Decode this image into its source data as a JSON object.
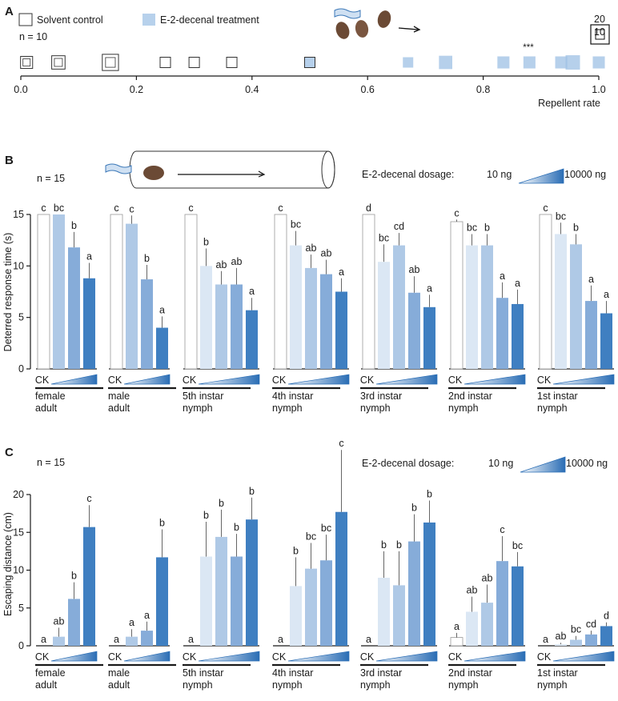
{
  "colors": {
    "ck_stroke": "#9a9a9a",
    "dose_fills": [
      "#dbe7f4",
      "#afc9e6",
      "#86acd9",
      "#3f7fc1"
    ],
    "solvent_stroke": "#333333",
    "treatment_fill": "#9dc0e4",
    "axis": "#1a1a1a"
  },
  "chart_data": [
    {
      "panel": "A",
      "type": "scatter",
      "xlabel": "Repellent rate",
      "xlim": [
        0.0,
        1.0
      ],
      "xticks": [
        "0.0",
        "0.2",
        "0.4",
        "0.6",
        "0.8",
        "1.0"
      ],
      "n_label": "n = 10",
      "legend": {
        "solvent": "Solvent control",
        "treatment": "E-2-decenal treatment"
      },
      "size_legend": [
        "20",
        "10"
      ],
      "significance": "***",
      "solvent_points": [
        {
          "x": 0.01,
          "count": 2
        },
        {
          "x": 0.065,
          "count": 3
        },
        {
          "x": 0.155,
          "count": 6
        },
        {
          "x": 0.25,
          "count": 1
        },
        {
          "x": 0.3,
          "count": 1
        },
        {
          "x": 0.365,
          "count": 1
        },
        {
          "x": 0.5,
          "count": 1
        }
      ],
      "treatment_points": [
        {
          "x": 0.5,
          "count": 1
        },
        {
          "x": 0.67,
          "count": 1
        },
        {
          "x": 0.735,
          "count": 3
        },
        {
          "x": 0.835,
          "count": 2
        },
        {
          "x": 0.88,
          "count": 2
        },
        {
          "x": 0.935,
          "count": 2
        },
        {
          "x": 0.955,
          "count": 4
        },
        {
          "x": 1.0,
          "count": 2
        }
      ]
    },
    {
      "panel": "B",
      "type": "bar",
      "ylabel": "Deterred response time (s)",
      "ylim": [
        0,
        15
      ],
      "yticks": [
        "0",
        "5",
        "10",
        "15"
      ],
      "n_label": "n = 15",
      "dosage_label": "E-2-decenal dosage:",
      "dose_low": "10 ng",
      "dose_high": "10000 ng",
      "ck_label": "CK",
      "groups": [
        {
          "name": [
            "female",
            "adult"
          ],
          "values": [
            15.0,
            15.0,
            11.8,
            8.8
          ],
          "errors": [
            0,
            0,
            1.5,
            1.5
          ],
          "letters": [
            "c",
            "bc",
            "b",
            "a"
          ]
        },
        {
          "name": [
            "male",
            "adult"
          ],
          "values": [
            15.0,
            14.1,
            8.7,
            4.0
          ],
          "errors": [
            0,
            0.8,
            1.4,
            1.1
          ],
          "letters": [
            "c",
            "c",
            "b",
            "a"
          ]
        },
        {
          "name": [
            "5th instar",
            "nymph"
          ],
          "values": [
            15.0,
            10.0,
            8.2,
            8.2,
            5.7
          ],
          "errors": [
            0,
            1.7,
            1.3,
            1.6,
            1.2
          ],
          "letters": [
            "c",
            "b",
            "ab",
            "ab",
            "a"
          ]
        },
        {
          "name": [
            "4th instar",
            "nymph"
          ],
          "values": [
            15.0,
            12.0,
            9.8,
            9.2,
            7.5
          ],
          "errors": [
            0,
            1.4,
            1.3,
            1.4,
            1.3
          ],
          "letters": [
            "c",
            "bc",
            "ab",
            "ab",
            "a"
          ]
        },
        {
          "name": [
            "3rd instar",
            "nymph"
          ],
          "values": [
            15.0,
            10.4,
            12.0,
            7.4,
            6.0
          ],
          "errors": [
            0,
            1.7,
            1.2,
            1.6,
            1.2
          ],
          "letters": [
            "d",
            "bc",
            "cd",
            "ab",
            "a"
          ]
        },
        {
          "name": [
            "2nd instar",
            "nymph"
          ],
          "values": [
            14.3,
            12.0,
            12.0,
            6.9,
            6.3
          ],
          "errors": [
            0.2,
            1.1,
            1.1,
            1.5,
            1.4
          ],
          "letters": [
            "c",
            "bc",
            "b",
            "a",
            "a"
          ]
        },
        {
          "name": [
            "1st instar",
            "nymph"
          ],
          "values": [
            15.0,
            13.1,
            12.1,
            6.6,
            5.4
          ],
          "errors": [
            0,
            1.1,
            1.0,
            1.5,
            1.2
          ],
          "letters": [
            "c",
            "bc",
            "b",
            "a",
            "a"
          ]
        }
      ]
    },
    {
      "panel": "C",
      "type": "bar",
      "ylabel": "Escaping distance (cm)",
      "ylim": [
        0,
        20
      ],
      "yticks": [
        "0",
        "5",
        "10",
        "15",
        "20"
      ],
      "n_label": "n = 15",
      "dosage_label": "E-2-decenal dosage:",
      "dose_low": "10 ng",
      "dose_high": "10000 ng",
      "ck_label": "CK",
      "groups": [
        {
          "name": [
            "female",
            "adult"
          ],
          "values": [
            0,
            1.2,
            6.2,
            15.7
          ],
          "errors": [
            0,
            1.2,
            2.2,
            2.9
          ],
          "letters": [
            "a",
            "ab",
            "b",
            "c"
          ]
        },
        {
          "name": [
            "male",
            "adult"
          ],
          "values": [
            0,
            1.2,
            2.0,
            11.7
          ],
          "errors": [
            0,
            1.0,
            1.2,
            3.7
          ],
          "letters": [
            "a",
            "a",
            "a",
            "b"
          ]
        },
        {
          "name": [
            "5th instar",
            "nymph"
          ],
          "values": [
            0,
            11.8,
            14.4,
            11.8,
            16.7
          ],
          "errors": [
            0,
            4.6,
            3.6,
            3.0,
            2.9
          ],
          "letters": [
            "a",
            "b",
            "b",
            "b",
            "b"
          ]
        },
        {
          "name": [
            "4th instar",
            "nymph"
          ],
          "values": [
            0,
            7.9,
            10.2,
            11.3,
            17.7
          ],
          "errors": [
            0,
            3.8,
            3.4,
            3.4,
            8.2
          ],
          "letters": [
            "a",
            "b",
            "bc",
            "bc",
            "c"
          ]
        },
        {
          "name": [
            "3rd instar",
            "nymph"
          ],
          "values": [
            0,
            9.0,
            8.0,
            13.8,
            16.3
          ],
          "errors": [
            0,
            3.5,
            4.5,
            3.6,
            2.9
          ],
          "letters": [
            "a",
            "b",
            "b",
            "b",
            "b"
          ]
        },
        {
          "name": [
            "2nd instar",
            "nymph"
          ],
          "values": [
            1.1,
            4.5,
            5.7,
            11.2,
            10.5
          ],
          "errors": [
            0.6,
            2.0,
            2.4,
            3.3,
            1.9
          ],
          "letters": [
            "a",
            "ab",
            "ab",
            "c",
            "bc"
          ]
        },
        {
          "name": [
            "1st instar",
            "nymph"
          ],
          "values": [
            0,
            0.2,
            0.8,
            1.5,
            2.6
          ],
          "errors": [
            0,
            0.2,
            0.5,
            0.5,
            0.5
          ],
          "letters": [
            "a",
            "ab",
            "bc",
            "cd",
            "d"
          ]
        }
      ]
    }
  ],
  "panel_labels": [
    "A",
    "B",
    "C"
  ]
}
